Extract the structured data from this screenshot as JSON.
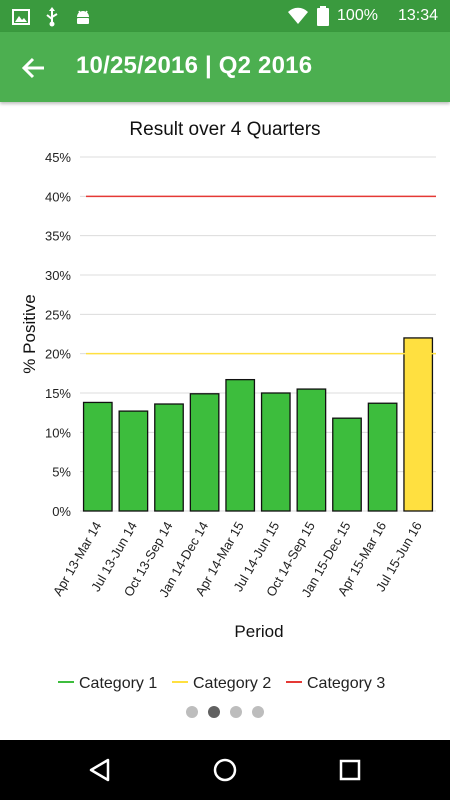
{
  "status_bar": {
    "battery": "100%",
    "time": "13:34",
    "icons": [
      "image-icon",
      "usb-icon",
      "android-icon",
      "wifi-icon",
      "battery-icon"
    ]
  },
  "app_bar": {
    "title": "10/25/2016 | Q2 2016",
    "back_icon": "arrow-left-icon"
  },
  "colors": {
    "status_bar": "#3a9a3e",
    "app_bar": "#4caf50",
    "category1": "#3dbd3d",
    "category2": "#ffe040",
    "category3": "#e53935"
  },
  "chart_data": {
    "type": "bar",
    "title": "Result over 4 Quarters",
    "xlabel": "Period",
    "ylabel": "% Positive",
    "ylim": [
      0,
      45
    ],
    "yticks": [
      "0%",
      "5%",
      "10%",
      "15%",
      "20%",
      "25%",
      "30%",
      "35%",
      "40%",
      "45%"
    ],
    "categories": [
      "Apr 13-Mar 14",
      "Jul 13-Jun 14",
      "Oct 13-Sep 14",
      "Jan 14-Dec 14",
      "Apr 14-Mar 15",
      "Jul 14-Jun 15",
      "Oct 14-Sep 15",
      "Jan 15-Dec 15",
      "Apr 15-Mar 16",
      "Jul 15-Jun 16"
    ],
    "values": [
      13.8,
      12.7,
      13.6,
      14.9,
      16.7,
      15.0,
      15.5,
      11.8,
      13.7,
      22.0
    ],
    "bar_category": [
      1,
      1,
      1,
      1,
      1,
      1,
      1,
      1,
      1,
      2
    ],
    "reference_lines": [
      {
        "category": 2,
        "value": 20
      },
      {
        "category": 3,
        "value": 40
      }
    ],
    "legend": [
      "Category 1",
      "Category 2",
      "Category 3"
    ],
    "legend_position": "bottom",
    "grid": true
  },
  "pager": {
    "count": 4,
    "active": 1
  }
}
